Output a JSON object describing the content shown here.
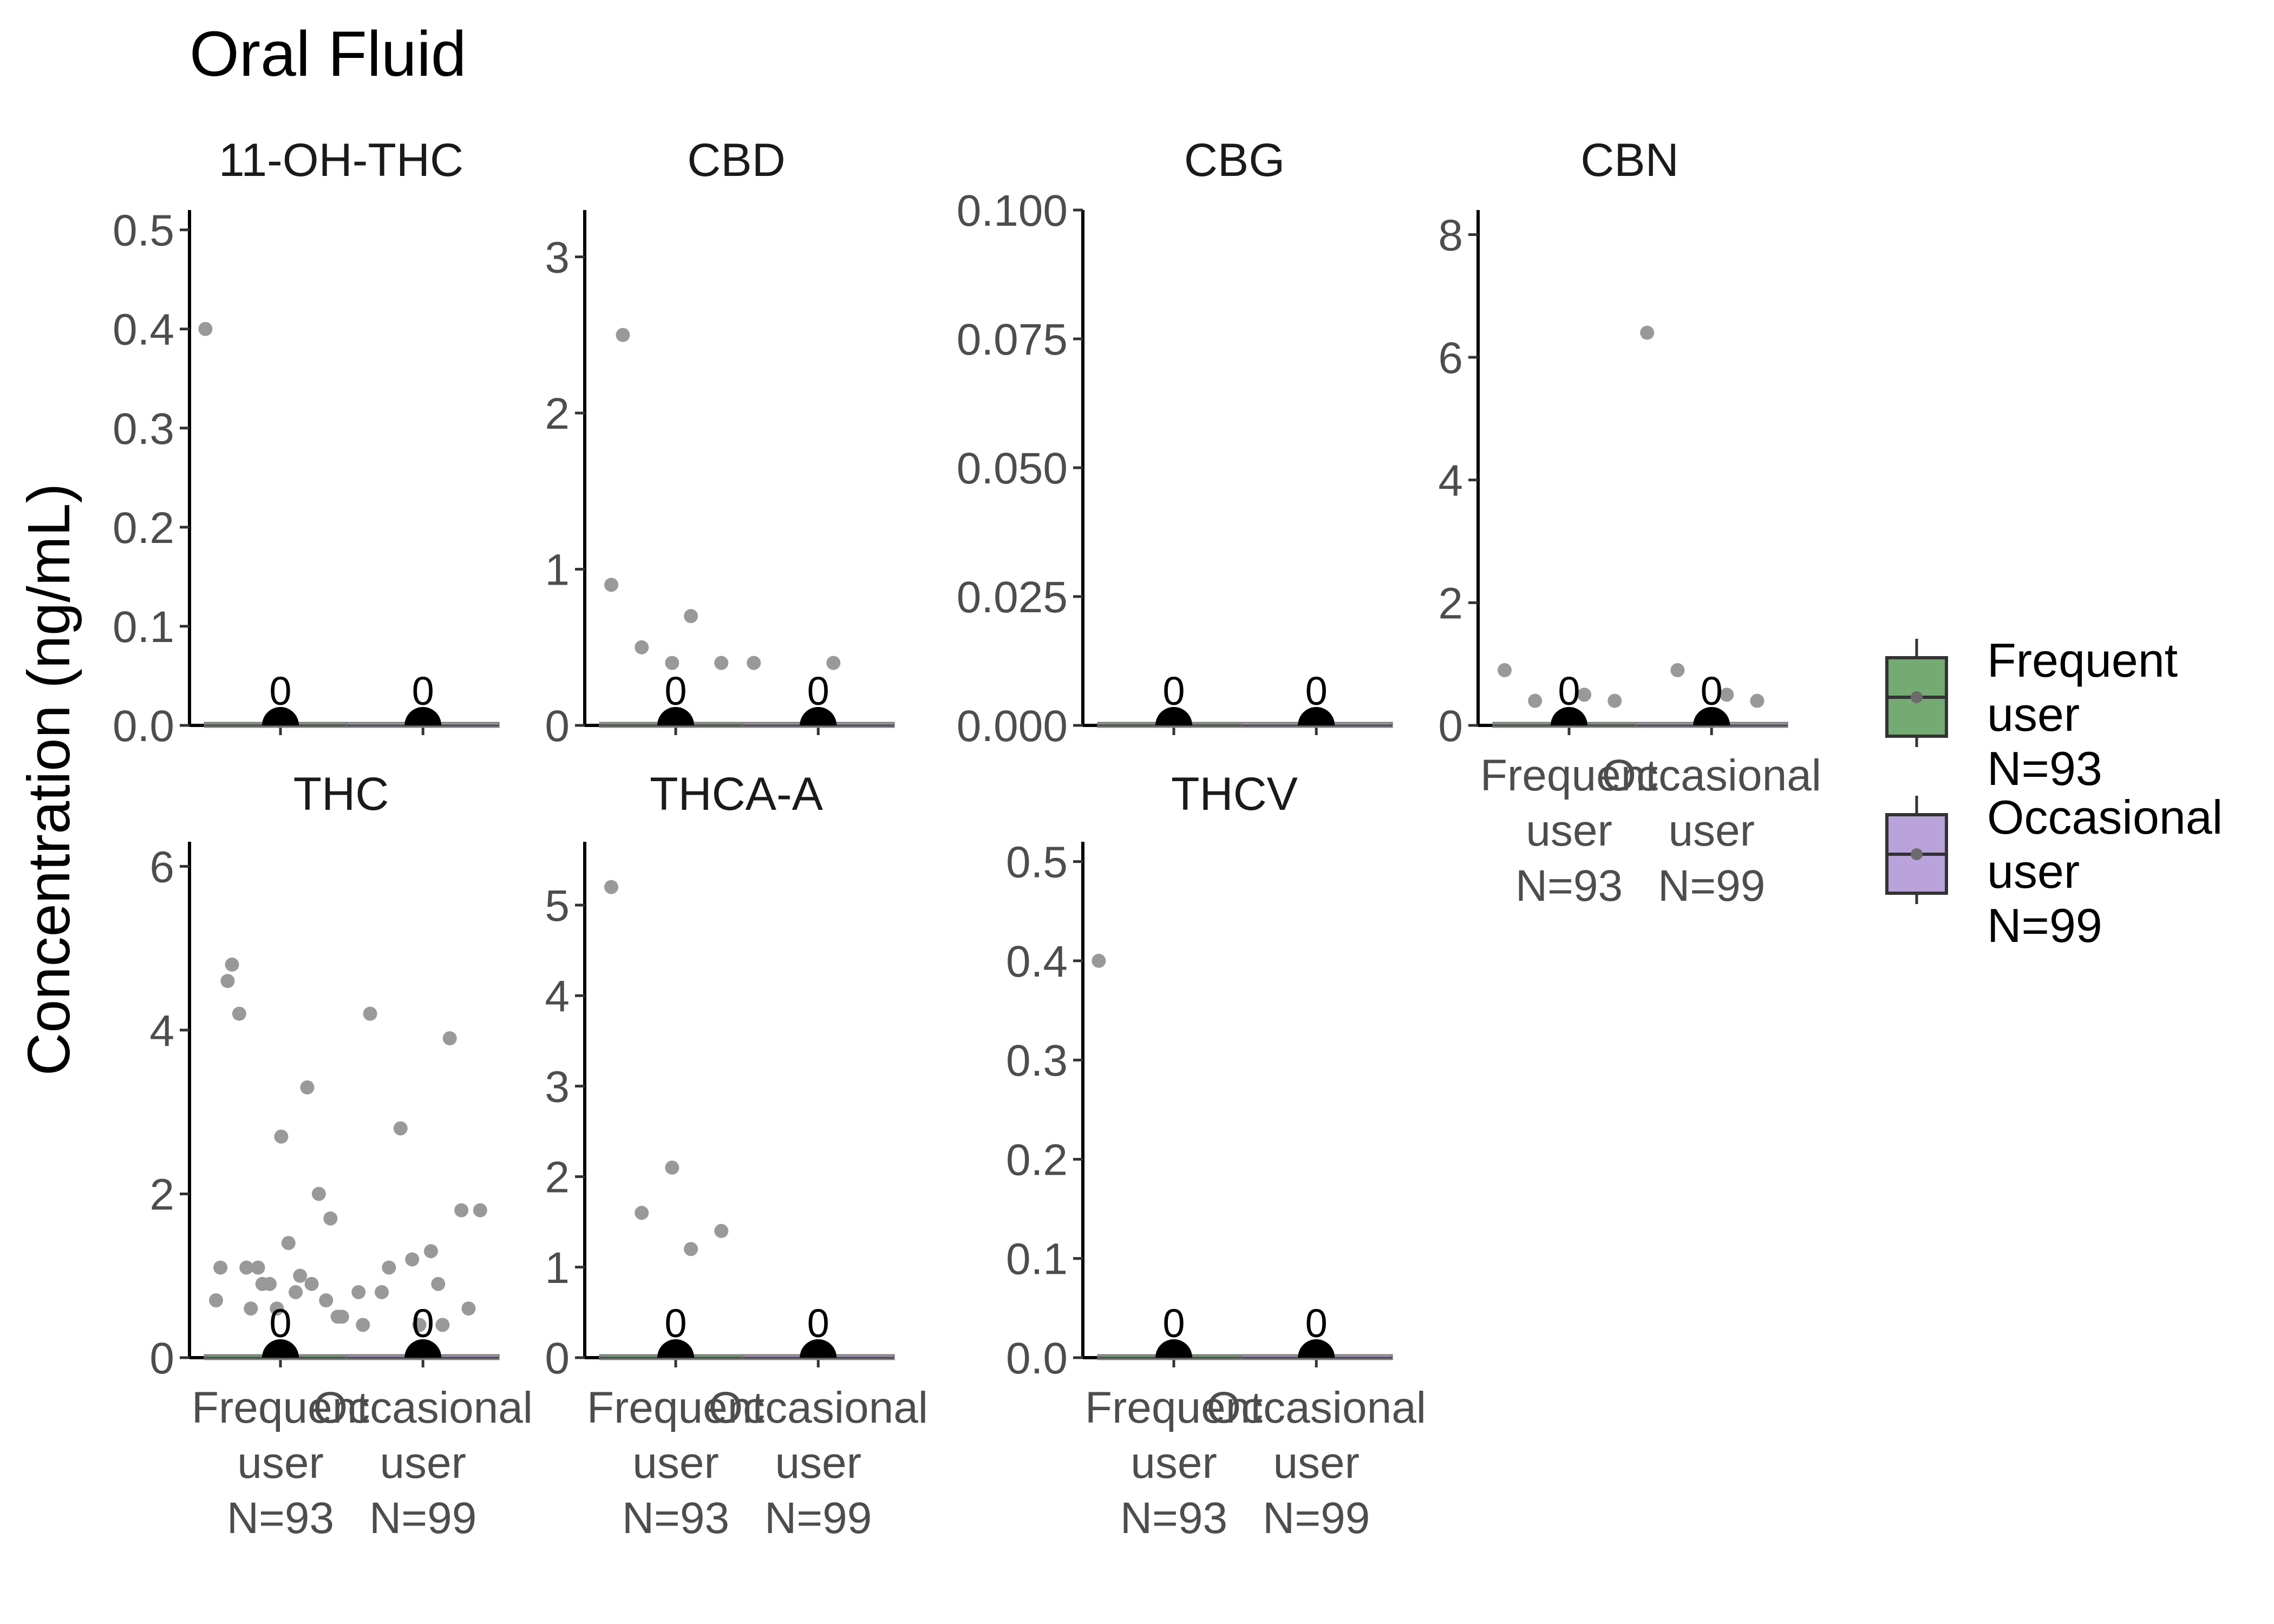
{
  "chart_data": {
    "type": "box",
    "title": "Oral Fluid",
    "ylabel": "Concentration (ng/mL)",
    "xlabel": "",
    "categories": [
      "Frequent\nuser\nN=93",
      "Occasional\nuser\nN=99"
    ],
    "legend": {
      "placement": "right",
      "entries": [
        {
          "label": "Frequent\nuser\nN=93",
          "color": "#74ab72"
        },
        {
          "label": "Occasional\nuser\nN=99",
          "color": "#b9a3da"
        }
      ]
    },
    "colors": {
      "point": "#999999",
      "median_marker": "#000000",
      "axis": "#000000"
    },
    "panels": [
      {
        "name": "11-OH-THC",
        "ylim": [
          0,
          0.52
        ],
        "yticks": [
          "0.0",
          "0.1",
          "0.2",
          "0.3",
          "0.4",
          "0.5"
        ],
        "ytick_values": [
          0,
          0.1,
          0.2,
          0.3,
          0.4,
          0.5
        ],
        "medians": [
          0,
          0
        ],
        "median_labels": [
          "0",
          "0"
        ],
        "points": [
          [
            0.4
          ],
          []
        ]
      },
      {
        "name": "CBD",
        "ylim": [
          0,
          3.3
        ],
        "yticks": [
          "0",
          "1",
          "2",
          "3"
        ],
        "ytick_values": [
          0,
          1,
          2,
          3
        ],
        "medians": [
          0,
          0
        ],
        "median_labels": [
          "0",
          "0"
        ],
        "points": [
          [
            0.9,
            0.7,
            0.5,
            0.4,
            0.4,
            2.5
          ],
          [
            0.4,
            0.4
          ]
        ]
      },
      {
        "name": "CBG",
        "ylim": [
          0,
          0.1
        ],
        "yticks": [
          "0.000",
          "0.025",
          "0.050",
          "0.075",
          "0.100"
        ],
        "ytick_values": [
          0,
          0.025,
          0.05,
          0.075,
          0.1
        ],
        "medians": [
          0,
          0
        ],
        "median_labels": [
          "0",
          "0"
        ],
        "points": [
          [],
          []
        ]
      },
      {
        "name": "CBN",
        "ylim": [
          0,
          8.4
        ],
        "yticks": [
          "0",
          "2",
          "4",
          "6",
          "8"
        ],
        "ytick_values": [
          0,
          2,
          4,
          6,
          8
        ],
        "medians": [
          0,
          0
        ],
        "median_labels": [
          "0",
          "0"
        ],
        "points": [
          [
            0.9,
            0.5,
            0.4,
            0.4
          ],
          [
            6.4,
            0.5,
            0.9,
            0.4
          ]
        ]
      },
      {
        "name": "THC",
        "ylim": [
          0,
          6.3
        ],
        "yticks": [
          "0",
          "2",
          "4",
          "6"
        ],
        "ytick_values": [
          0,
          2,
          4,
          6
        ],
        "medians": [
          0,
          0
        ],
        "median_labels": [
          "0",
          "0"
        ],
        "points": [
          [
            0.7,
            0.8,
            1.1,
            0.7,
            0.6,
            4.6,
            3.3,
            1.1,
            0.5,
            1.4,
            4.2,
            2.0,
            0.9,
            1.1,
            1.0,
            0.6,
            1.7,
            2.7,
            4.8,
            0.9,
            0.9,
            0.5
          ],
          [
            0.8,
            0.9,
            1.1,
            0.6,
            0.4,
            4.2,
            3.9,
            2.8,
            1.8,
            1.3,
            0.8,
            1.8,
            1.2,
            0.4,
            0.4
          ]
        ]
      },
      {
        "name": "THCA-A",
        "ylim": [
          0,
          5.7
        ],
        "yticks": [
          "0",
          "1",
          "2",
          "3",
          "4",
          "5"
        ],
        "ytick_values": [
          0,
          1,
          2,
          3,
          4,
          5
        ],
        "medians": [
          0,
          0
        ],
        "median_labels": [
          "0",
          "0"
        ],
        "points": [
          [
            5.2,
            1.2,
            1.6,
            1.4,
            2.1
          ],
          []
        ]
      },
      {
        "name": "THCV",
        "ylim": [
          0,
          0.52
        ],
        "yticks": [
          "0.0",
          "0.1",
          "0.2",
          "0.3",
          "0.4",
          "0.5"
        ],
        "ytick_values": [
          0,
          0.1,
          0.2,
          0.3,
          0.4,
          0.5
        ],
        "medians": [
          0,
          0
        ],
        "median_labels": [
          "0",
          "0"
        ],
        "points": [
          [
            0.4
          ],
          []
        ]
      }
    ]
  }
}
